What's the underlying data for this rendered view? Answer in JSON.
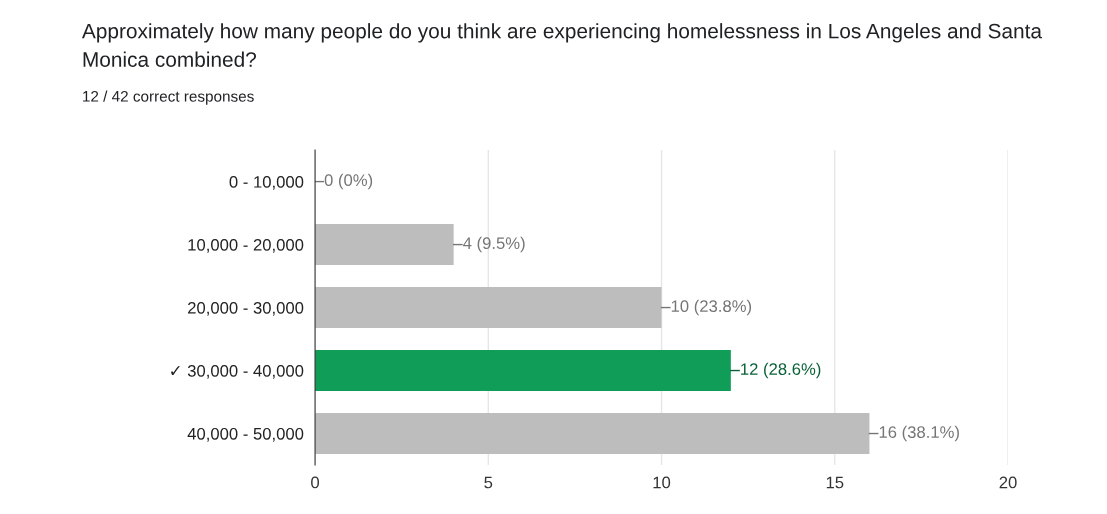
{
  "chart_data": {
    "type": "bar",
    "orientation": "horizontal",
    "title": "Approximately how many people do you think are experiencing homelessness in Los Angeles and Santa Monica combined?",
    "subtitle": "12 / 42 correct responses",
    "categories": [
      "0 - 10,000",
      "10,000 - 20,000",
      "20,000 - 30,000",
      "✓ 30,000 - 40,000",
      "40,000 - 50,000"
    ],
    "values": [
      0,
      4,
      10,
      12,
      16
    ],
    "colors": [
      "#bdbdbd",
      "#bdbdbd",
      "#bdbdbd",
      "#0f9d58",
      "#bdbdbd"
    ],
    "value_labels": [
      "0 (0%)",
      "4 (9.5%)",
      "10 (23.8%)",
      "12 (28.6%)",
      "16 (38.1%)"
    ],
    "xlim": [
      0,
      20
    ],
    "xticks": [
      0,
      5,
      10,
      15,
      20
    ],
    "grid": "x"
  }
}
